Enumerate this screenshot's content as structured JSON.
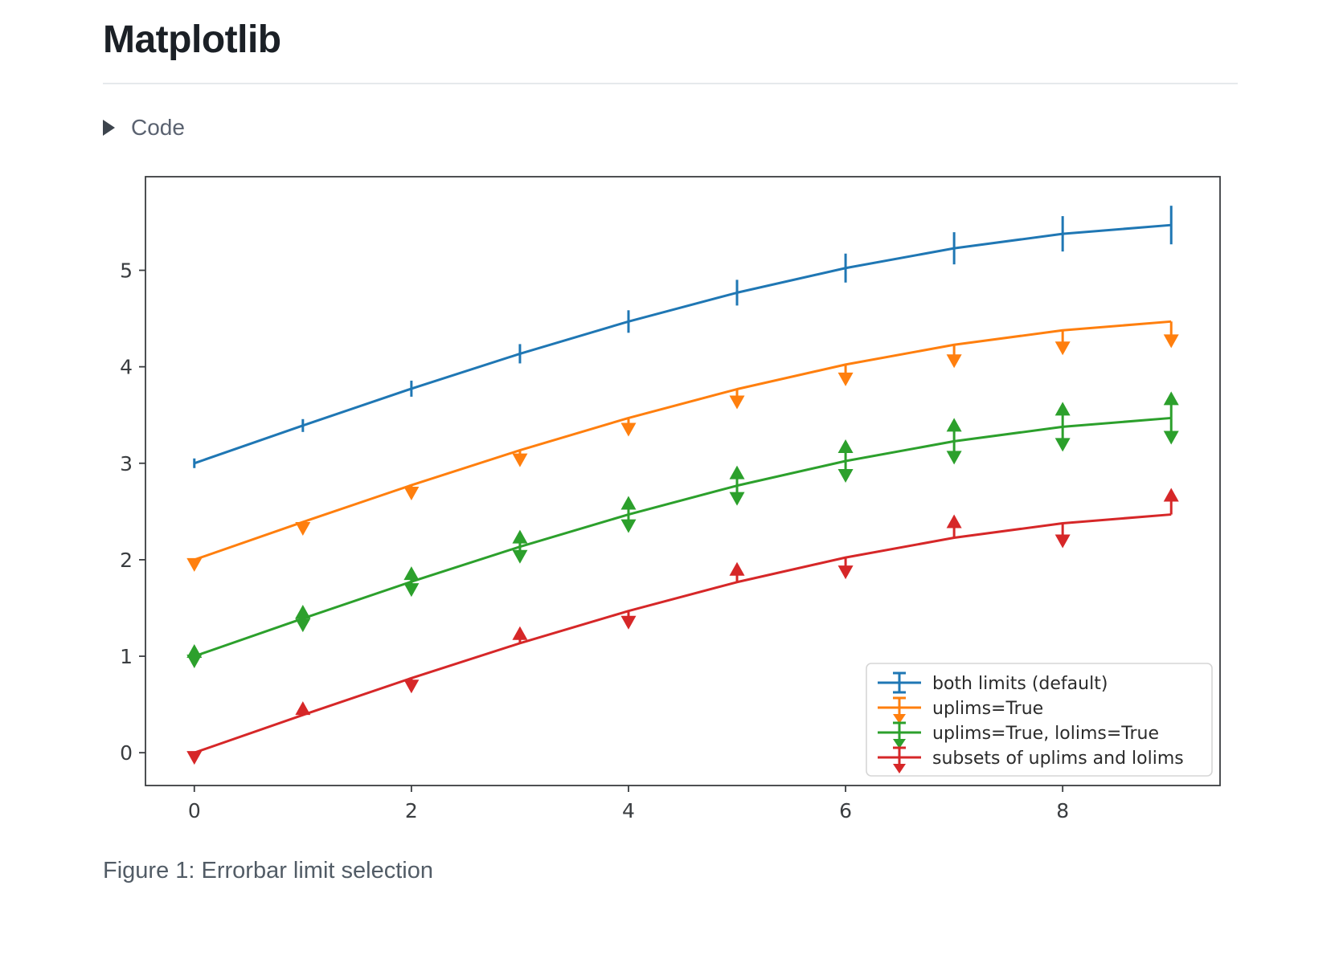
{
  "page": {
    "title": "Matplotlib",
    "code_toggle": {
      "label": "Code",
      "state": "collapsed"
    },
    "figure_caption": "Figure 1: Errorbar limit selection"
  },
  "chart_data": {
    "type": "line",
    "title": "",
    "xlabel": "",
    "ylabel": "",
    "x": [
      0,
      1,
      2,
      3,
      4,
      5,
      6,
      7,
      8,
      9
    ],
    "yerr": [
      0.05,
      0.0667,
      0.0833,
      0.1,
      0.1167,
      0.1333,
      0.15,
      0.1667,
      0.1833,
      0.2
    ],
    "series": [
      {
        "name": "both limits (default)",
        "color": "#1f77b4",
        "limits": "none",
        "values": [
          3.0,
          3.391,
          3.773,
          4.135,
          4.469,
          4.768,
          5.023,
          5.228,
          5.378,
          5.469
        ]
      },
      {
        "name": "uplims=True",
        "color": "#ff7f0e",
        "limits": "uplims",
        "values": [
          2.0,
          2.391,
          2.773,
          3.135,
          3.469,
          3.768,
          4.023,
          4.228,
          4.378,
          4.469
        ]
      },
      {
        "name": "uplims=True, lolims=True",
        "color": "#2ca02c",
        "limits": "both",
        "values": [
          1.0,
          1.391,
          1.773,
          2.135,
          2.469,
          2.768,
          3.023,
          3.228,
          3.378,
          3.469
        ]
      },
      {
        "name": "subsets of uplims and lolims",
        "color": "#d62728",
        "limits": "alternating",
        "values": [
          0.0,
          0.391,
          0.773,
          1.135,
          1.469,
          1.768,
          2.023,
          2.228,
          2.378,
          2.469
        ]
      }
    ],
    "xticks": [
      "0",
      "2",
      "4",
      "6",
      "8"
    ],
    "yticks": [
      "0",
      "1",
      "2",
      "3",
      "4",
      "5"
    ],
    "xlim": [
      -0.45,
      9.45
    ],
    "ylim": [
      -0.34,
      5.97
    ],
    "grid": false,
    "legend": {
      "position": "lower right"
    },
    "axis_color": "#3a3d40",
    "tick_label_color": "#3a3d40",
    "legend_border_color": "#d6d6d6",
    "legend_text_color": "#2b2b2b"
  }
}
